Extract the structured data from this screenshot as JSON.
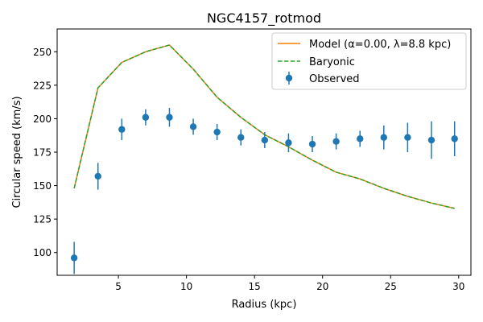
{
  "chart_data": {
    "type": "line",
    "title": "NGC4157_rotmod",
    "xlabel": "Radius (kpc)",
    "ylabel": "Circular speed (km/s)",
    "xlim": [
      0.5,
      30.9
    ],
    "ylim": [
      83,
      267
    ],
    "xticks": [
      5,
      10,
      15,
      20,
      25,
      30
    ],
    "yticks": [
      100,
      125,
      150,
      175,
      200,
      225,
      250
    ],
    "grid": false,
    "legend_position": "top-right",
    "series": [
      {
        "name": "Model (α=0.00, λ=8.8 kpc)",
        "kind": "line",
        "style": "solid",
        "color": "#ff7f0e",
        "x": [
          1.75,
          3.5,
          5.25,
          7.0,
          8.75,
          10.5,
          12.25,
          14.0,
          15.75,
          17.5,
          19.25,
          21.0,
          22.75,
          24.5,
          26.25,
          28.0,
          29.7
        ],
        "y": [
          148,
          223,
          242,
          250,
          255,
          237,
          216,
          201,
          188,
          179,
          169,
          160,
          155,
          148,
          142,
          137,
          133
        ]
      },
      {
        "name": "Baryonic",
        "kind": "line",
        "style": "dashed",
        "color": "#2ca02c",
        "x": [
          1.75,
          3.5,
          5.25,
          7.0,
          8.75,
          10.5,
          12.25,
          14.0,
          15.75,
          17.5,
          19.25,
          21.0,
          22.75,
          24.5,
          26.25,
          28.0,
          29.7
        ],
        "y": [
          148,
          223,
          242,
          250,
          255,
          237,
          216,
          201,
          188,
          179,
          169,
          160,
          155,
          148,
          142,
          137,
          133
        ]
      },
      {
        "name": "Observed",
        "kind": "errorbar",
        "color": "#1f77b4",
        "x": [
          1.75,
          3.5,
          5.25,
          7.0,
          8.75,
          10.5,
          12.25,
          14.0,
          15.75,
          17.5,
          19.25,
          21.0,
          22.75,
          24.5,
          26.25,
          28.0,
          29.7
        ],
        "y": [
          96,
          157,
          192,
          201,
          201,
          194,
          190,
          186,
          184,
          182,
          181,
          183,
          185,
          186,
          186,
          184,
          185
        ],
        "yerr": [
          12,
          10,
          8,
          6,
          7,
          6,
          6,
          6,
          6,
          7,
          6,
          6,
          6,
          9,
          11,
          14,
          13
        ]
      }
    ]
  }
}
